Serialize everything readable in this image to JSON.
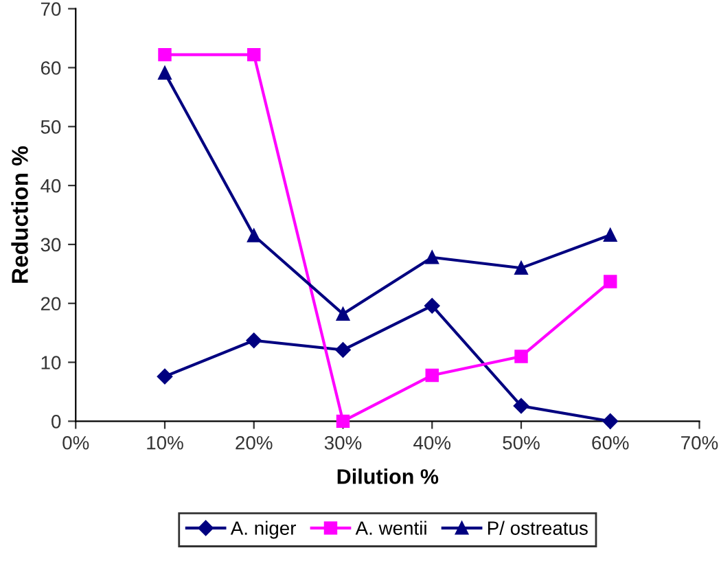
{
  "chart_data": {
    "type": "line",
    "xlabel": "Dilution %",
    "ylabel": "Reduction %",
    "x": [
      10,
      20,
      30,
      40,
      50,
      60
    ],
    "series": [
      {
        "name": "A. niger",
        "color": "#000080",
        "marker": "diamond",
        "values": [
          7.6,
          13.7,
          12.1,
          19.6,
          2.6,
          0
        ]
      },
      {
        "name": "A. wentii",
        "color": "#ff00ff",
        "marker": "square",
        "values": [
          62.2,
          62.2,
          0,
          7.8,
          11.0,
          23.7
        ]
      },
      {
        "name": "P/ ostreatus",
        "color": "#000080",
        "marker": "triangle",
        "values": [
          59.1,
          31.5,
          18.2,
          27.8,
          26.0,
          31.6
        ]
      }
    ],
    "xlim": [
      0,
      70
    ],
    "xticks": [
      {
        "value": 0,
        "label": "0%"
      },
      {
        "value": 10,
        "label": "10%"
      },
      {
        "value": 20,
        "label": "20%"
      },
      {
        "value": 30,
        "label": "30%"
      },
      {
        "value": 40,
        "label": "40%"
      },
      {
        "value": 50,
        "label": "50%"
      },
      {
        "value": 60,
        "label": "60%"
      },
      {
        "value": 70,
        "label": "70%"
      }
    ],
    "ylim": [
      0,
      70
    ],
    "yticks": [
      0,
      10,
      20,
      30,
      40,
      50,
      60,
      70
    ],
    "grid": false,
    "legend": "bottom",
    "line_style": "solid"
  }
}
